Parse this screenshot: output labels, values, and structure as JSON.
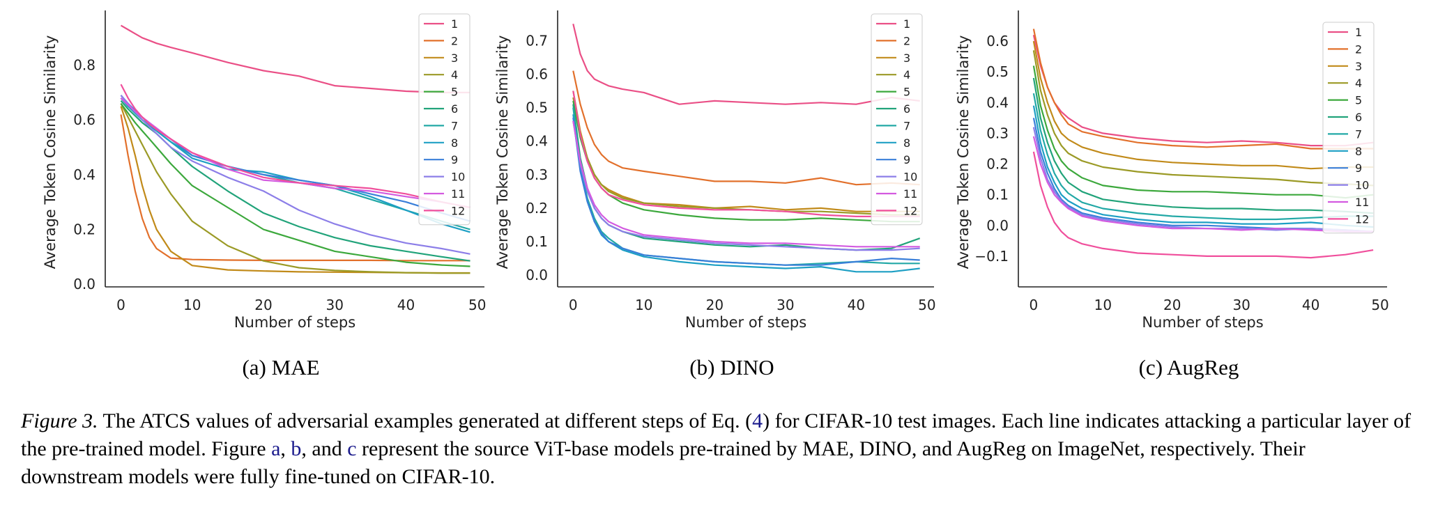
{
  "chart_data": [
    {
      "type": "line",
      "subcaption": "(a) MAE",
      "xlabel": "Number of steps",
      "ylabel": "Average Token Cosine Similarity",
      "xlim": [
        -2,
        51
      ],
      "ylim": [
        -0.01,
        1.0
      ],
      "xticks": [
        0,
        10,
        20,
        30,
        40,
        50
      ],
      "yticks": [
        0.0,
        0.2,
        0.4,
        0.6,
        0.8
      ],
      "ytick_labels": [
        "0.0",
        "0.2",
        "0.4",
        "0.6",
        "0.8"
      ],
      "x": [
        0,
        1,
        2,
        3,
        4,
        5,
        7,
        10,
        15,
        20,
        25,
        30,
        35,
        40,
        45,
        49
      ],
      "series": [
        {
          "name": "1",
          "color": "#ea4f86",
          "values": [
            0.945,
            0.93,
            0.915,
            0.9,
            0.89,
            0.88,
            0.865,
            0.845,
            0.81,
            0.78,
            0.76,
            0.725,
            0.715,
            0.705,
            0.7,
            0.7
          ]
        },
        {
          "name": "2",
          "color": "#e2702b",
          "values": [
            0.62,
            0.47,
            0.34,
            0.24,
            0.17,
            0.13,
            0.095,
            0.09,
            0.088,
            0.087,
            0.087,
            0.087,
            0.087,
            0.086,
            0.086,
            0.086
          ]
        },
        {
          "name": "3",
          "color": "#c18a19",
          "values": [
            0.65,
            0.57,
            0.47,
            0.36,
            0.27,
            0.2,
            0.12,
            0.068,
            0.052,
            0.048,
            0.045,
            0.044,
            0.043,
            0.042,
            0.041,
            0.041
          ]
        },
        {
          "name": "4",
          "color": "#9b9a26",
          "values": [
            0.66,
            0.61,
            0.56,
            0.51,
            0.46,
            0.41,
            0.33,
            0.23,
            0.14,
            0.085,
            0.06,
            0.05,
            0.045,
            0.042,
            0.04,
            0.04
          ]
        },
        {
          "name": "5",
          "color": "#3ca83c",
          "values": [
            0.66,
            0.625,
            0.59,
            0.56,
            0.53,
            0.5,
            0.44,
            0.36,
            0.28,
            0.2,
            0.16,
            0.12,
            0.1,
            0.08,
            0.07,
            0.065
          ]
        },
        {
          "name": "6",
          "color": "#21a37a",
          "values": [
            0.67,
            0.64,
            0.615,
            0.59,
            0.57,
            0.55,
            0.5,
            0.43,
            0.34,
            0.26,
            0.21,
            0.17,
            0.14,
            0.12,
            0.1,
            0.085
          ]
        },
        {
          "name": "7",
          "color": "#22a8a6",
          "values": [
            0.68,
            0.65,
            0.625,
            0.6,
            0.58,
            0.56,
            0.52,
            0.47,
            0.43,
            0.4,
            0.37,
            0.35,
            0.31,
            0.27,
            0.23,
            0.2
          ]
        },
        {
          "name": "8",
          "color": "#1d9fc4",
          "values": [
            0.68,
            0.65,
            0.625,
            0.6,
            0.58,
            0.56,
            0.52,
            0.46,
            0.42,
            0.41,
            0.38,
            0.36,
            0.32,
            0.27,
            0.22,
            0.19
          ]
        },
        {
          "name": "9",
          "color": "#3a7fd9",
          "values": [
            0.69,
            0.66,
            0.635,
            0.61,
            0.585,
            0.565,
            0.53,
            0.47,
            0.43,
            0.4,
            0.38,
            0.36,
            0.33,
            0.3,
            0.26,
            0.23
          ]
        },
        {
          "name": "10",
          "color": "#8c7ee8",
          "values": [
            0.69,
            0.66,
            0.63,
            0.6,
            0.575,
            0.55,
            0.5,
            0.45,
            0.39,
            0.34,
            0.27,
            0.22,
            0.18,
            0.15,
            0.13,
            0.11
          ]
        },
        {
          "name": "11",
          "color": "#d35ae0",
          "values": [
            0.68,
            0.655,
            0.63,
            0.61,
            0.59,
            0.57,
            0.53,
            0.48,
            0.42,
            0.38,
            0.37,
            0.35,
            0.34,
            0.32,
            0.3,
            0.28
          ]
        },
        {
          "name": "12",
          "color": "#f04f9c",
          "values": [
            0.73,
            0.68,
            0.64,
            0.61,
            0.585,
            0.565,
            0.53,
            0.48,
            0.43,
            0.39,
            0.37,
            0.36,
            0.35,
            0.33,
            0.3,
            0.28
          ]
        }
      ]
    },
    {
      "type": "line",
      "subcaption": "(b) DINO",
      "xlabel": "Number of steps",
      "ylabel": "Average Token Cosine Similarity",
      "xlim": [
        -2,
        51
      ],
      "ylim": [
        -0.035,
        0.79
      ],
      "xticks": [
        0,
        10,
        20,
        30,
        40,
        50
      ],
      "yticks": [
        0.0,
        0.1,
        0.2,
        0.3,
        0.4,
        0.5,
        0.6,
        0.7
      ],
      "ytick_labels": [
        "0.0",
        "0.1",
        "0.2",
        "0.3",
        "0.4",
        "0.5",
        "0.6",
        "0.7"
      ],
      "x": [
        0,
        1,
        2,
        3,
        4,
        5,
        7,
        10,
        15,
        20,
        25,
        30,
        35,
        40,
        45,
        49
      ],
      "series": [
        {
          "name": "1",
          "color": "#ea4f86",
          "values": [
            0.75,
            0.66,
            0.61,
            0.585,
            0.575,
            0.565,
            0.555,
            0.545,
            0.51,
            0.52,
            0.515,
            0.51,
            0.515,
            0.51,
            0.53,
            0.52
          ]
        },
        {
          "name": "2",
          "color": "#e2702b",
          "values": [
            0.61,
            0.51,
            0.44,
            0.39,
            0.36,
            0.34,
            0.32,
            0.31,
            0.295,
            0.28,
            0.28,
            0.275,
            0.29,
            0.27,
            0.275,
            0.27
          ]
        },
        {
          "name": "3",
          "color": "#c18a19",
          "values": [
            0.55,
            0.43,
            0.35,
            0.3,
            0.27,
            0.255,
            0.235,
            0.215,
            0.21,
            0.2,
            0.205,
            0.195,
            0.2,
            0.19,
            0.19,
            0.19
          ]
        },
        {
          "name": "4",
          "color": "#9b9a26",
          "values": [
            0.53,
            0.42,
            0.35,
            0.3,
            0.27,
            0.25,
            0.23,
            0.215,
            0.205,
            0.2,
            0.195,
            0.19,
            0.19,
            0.185,
            0.18,
            0.18
          ]
        },
        {
          "name": "5",
          "color": "#3ca83c",
          "values": [
            0.52,
            0.41,
            0.34,
            0.29,
            0.26,
            0.24,
            0.215,
            0.195,
            0.18,
            0.17,
            0.165,
            0.165,
            0.17,
            0.165,
            0.16,
            0.16
          ]
        },
        {
          "name": "6",
          "color": "#21a37a",
          "values": [
            0.51,
            0.35,
            0.26,
            0.2,
            0.17,
            0.15,
            0.13,
            0.11,
            0.1,
            0.09,
            0.085,
            0.09,
            0.08,
            0.075,
            0.08,
            0.11
          ]
        },
        {
          "name": "7",
          "color": "#22a8a6",
          "values": [
            0.5,
            0.33,
            0.23,
            0.17,
            0.13,
            0.11,
            0.08,
            0.06,
            0.05,
            0.04,
            0.035,
            0.03,
            0.035,
            0.04,
            0.035,
            0.035
          ]
        },
        {
          "name": "8",
          "color": "#1d9fc4",
          "values": [
            0.48,
            0.32,
            0.22,
            0.16,
            0.12,
            0.1,
            0.075,
            0.055,
            0.04,
            0.03,
            0.025,
            0.02,
            0.025,
            0.01,
            0.01,
            0.02
          ]
        },
        {
          "name": "9",
          "color": "#3a7fd9",
          "values": [
            0.47,
            0.31,
            0.22,
            0.16,
            0.125,
            0.1,
            0.08,
            0.06,
            0.05,
            0.04,
            0.035,
            0.03,
            0.03,
            0.04,
            0.05,
            0.045
          ]
        },
        {
          "name": "10",
          "color": "#8c7ee8",
          "values": [
            0.46,
            0.33,
            0.25,
            0.2,
            0.17,
            0.15,
            0.13,
            0.115,
            0.105,
            0.095,
            0.09,
            0.085,
            0.08,
            0.075,
            0.075,
            0.08
          ]
        },
        {
          "name": "11",
          "color": "#d35ae0",
          "values": [
            0.46,
            0.34,
            0.26,
            0.21,
            0.18,
            0.16,
            0.14,
            0.12,
            0.11,
            0.1,
            0.095,
            0.095,
            0.09,
            0.085,
            0.085,
            0.085
          ]
        },
        {
          "name": "12",
          "color": "#f04f9c",
          "values": [
            0.55,
            0.42,
            0.34,
            0.29,
            0.26,
            0.24,
            0.225,
            0.21,
            0.2,
            0.195,
            0.195,
            0.19,
            0.18,
            0.175,
            0.175,
            0.175
          ]
        }
      ]
    },
    {
      "type": "line",
      "subcaption": "(c) AugReg",
      "xlabel": "Number of steps",
      "ylabel": "Average Token Cosine Similarity",
      "xlim": [
        -2,
        51
      ],
      "ylim": [
        -0.2,
        0.7
      ],
      "xticks": [
        0,
        10,
        20,
        30,
        40,
        50
      ],
      "yticks": [
        -0.1,
        0.0,
        0.1,
        0.2,
        0.3,
        0.4,
        0.5,
        0.6
      ],
      "ytick_labels": [
        "−0.1",
        "0.0",
        "0.1",
        "0.2",
        "0.3",
        "0.4",
        "0.5",
        "0.6"
      ],
      "x": [
        0,
        1,
        2,
        3,
        4,
        5,
        7,
        10,
        15,
        20,
        25,
        30,
        35,
        40,
        45,
        49
      ],
      "series": [
        {
          "name": "1",
          "color": "#ea4f86",
          "values": [
            0.62,
            0.52,
            0.45,
            0.4,
            0.37,
            0.35,
            0.32,
            0.3,
            0.285,
            0.275,
            0.27,
            0.275,
            0.27,
            0.26,
            0.26,
            0.27
          ]
        },
        {
          "name": "2",
          "color": "#e2702b",
          "values": [
            0.64,
            0.53,
            0.45,
            0.4,
            0.36,
            0.33,
            0.305,
            0.29,
            0.27,
            0.26,
            0.255,
            0.26,
            0.265,
            0.25,
            0.25,
            0.25
          ]
        },
        {
          "name": "3",
          "color": "#c18a19",
          "values": [
            0.6,
            0.48,
            0.4,
            0.34,
            0.3,
            0.28,
            0.255,
            0.235,
            0.215,
            0.205,
            0.2,
            0.195,
            0.195,
            0.185,
            0.19,
            0.19
          ]
        },
        {
          "name": "4",
          "color": "#9b9a26",
          "values": [
            0.57,
            0.44,
            0.36,
            0.3,
            0.26,
            0.235,
            0.21,
            0.19,
            0.175,
            0.165,
            0.16,
            0.155,
            0.15,
            0.14,
            0.135,
            0.13
          ]
        },
        {
          "name": "5",
          "color": "#3ca83c",
          "values": [
            0.52,
            0.39,
            0.31,
            0.25,
            0.21,
            0.185,
            0.155,
            0.13,
            0.115,
            0.11,
            0.11,
            0.105,
            0.1,
            0.1,
            0.09,
            0.1
          ]
        },
        {
          "name": "6",
          "color": "#21a37a",
          "values": [
            0.48,
            0.35,
            0.27,
            0.21,
            0.17,
            0.14,
            0.11,
            0.085,
            0.07,
            0.06,
            0.055,
            0.055,
            0.05,
            0.05,
            0.045,
            0.04
          ]
        },
        {
          "name": "7",
          "color": "#22a8a6",
          "values": [
            0.43,
            0.31,
            0.23,
            0.17,
            0.13,
            0.105,
            0.075,
            0.055,
            0.04,
            0.03,
            0.025,
            0.02,
            0.02,
            0.025,
            0.03,
            0.03
          ]
        },
        {
          "name": "8",
          "color": "#1d9fc4",
          "values": [
            0.39,
            0.27,
            0.19,
            0.14,
            0.1,
            0.08,
            0.055,
            0.035,
            0.02,
            0.01,
            0.01,
            0.005,
            0.005,
            0.01,
            0.0,
            -0.005
          ]
        },
        {
          "name": "9",
          "color": "#3a7fd9",
          "values": [
            0.35,
            0.24,
            0.17,
            0.12,
            0.085,
            0.065,
            0.04,
            0.025,
            0.01,
            0.0,
            0.0,
            -0.005,
            -0.01,
            -0.01,
            -0.015,
            -0.02
          ]
        },
        {
          "name": "10",
          "color": "#8c7ee8",
          "values": [
            0.32,
            0.22,
            0.15,
            0.11,
            0.08,
            0.06,
            0.035,
            0.02,
            0.005,
            -0.005,
            -0.01,
            -0.01,
            -0.015,
            -0.01,
            -0.015,
            -0.02
          ]
        },
        {
          "name": "11",
          "color": "#d35ae0",
          "values": [
            0.29,
            0.2,
            0.14,
            0.1,
            0.075,
            0.055,
            0.03,
            0.015,
            0.0,
            -0.01,
            -0.01,
            -0.015,
            -0.01,
            -0.015,
            -0.02,
            -0.02
          ]
        },
        {
          "name": "12",
          "color": "#f04f9c",
          "values": [
            0.24,
            0.13,
            0.06,
            0.01,
            -0.02,
            -0.04,
            -0.06,
            -0.075,
            -0.09,
            -0.095,
            -0.1,
            -0.1,
            -0.1,
            -0.105,
            -0.095,
            -0.08
          ]
        }
      ]
    }
  ],
  "caption": {
    "figure_label": "Figure 3.",
    "text_part1": " The ATCS values of adversarial examples generated at different steps of Eq. (",
    "eq_ref": "4",
    "text_part2": ") for CIFAR-10 test images. Each line indicates attacking a particular layer of the pre-trained model. Figure ",
    "ref_a": "a",
    "sep1": ", ",
    "ref_b": "b",
    "sep2": ", and ",
    "ref_c": "c",
    "text_part3": " represent the source ViT-base models pre-trained by MAE, DINO, and AugReg on ImageNet, respectively. Their downstream models were fully fine-tuned on CIFAR-10."
  }
}
